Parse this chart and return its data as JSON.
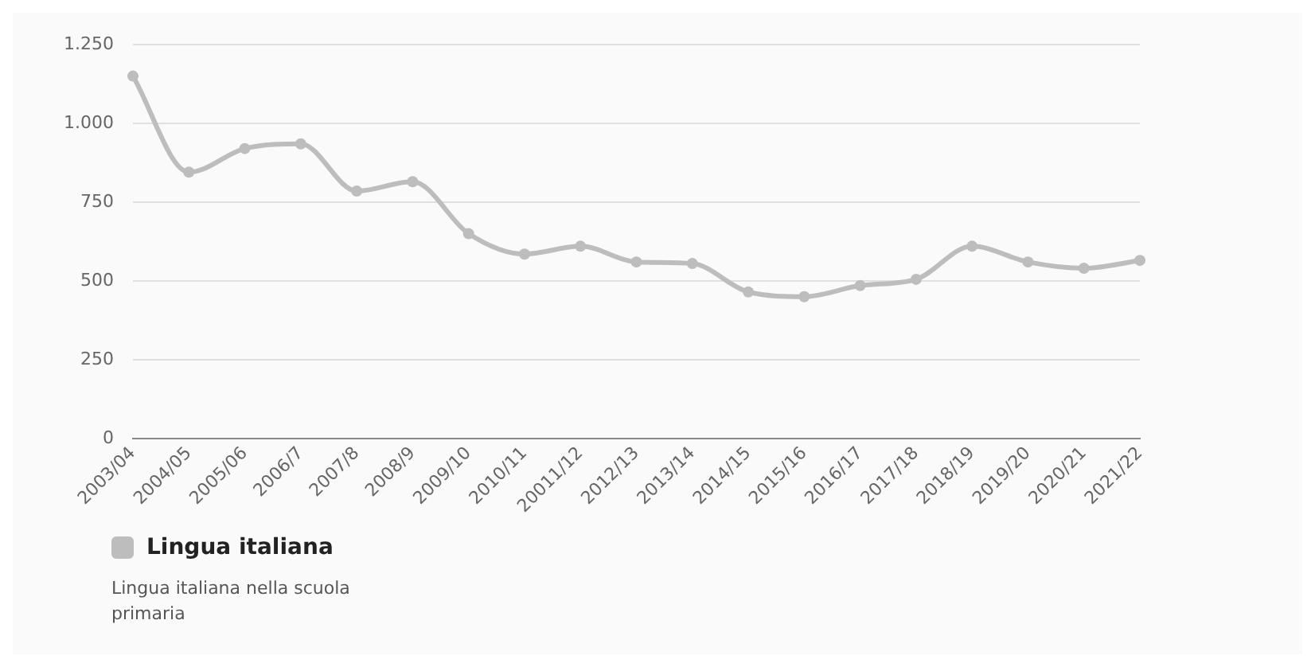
{
  "chart_data": {
    "type": "line",
    "categories": [
      "2003/04",
      "2004/05",
      "2005/06",
      "2006/7",
      "2007/8",
      "2008/9",
      "2009/10",
      "2010/11",
      "20011/12",
      "2012/13",
      "2013/14",
      "2014/15",
      "2015/16",
      "2016/17",
      "2017/18",
      "2018/19",
      "2019/20",
      "2020/21",
      "2021/22"
    ],
    "series": [
      {
        "name": "Lingua italiana",
        "color": "#bdbdbd",
        "values": [
          1150,
          845,
          920,
          935,
          785,
          815,
          650,
          585,
          610,
          560,
          555,
          465,
          450,
          485,
          505,
          610,
          560,
          540,
          565
        ]
      }
    ],
    "ylim": [
      0,
      1250
    ],
    "yticks": [
      0,
      {
        "value": 250,
        "label": "250"
      },
      500,
      750,
      {
        "value": 1000,
        "label": "1.000"
      },
      {
        "value": 1250,
        "label": "1.250"
      }
    ],
    "grid": "y",
    "legend": "bottom left",
    "marker": "circle",
    "line_style": "solid",
    "annotations": [
      "Lingua italiana nella scuola primaria"
    ]
  }
}
